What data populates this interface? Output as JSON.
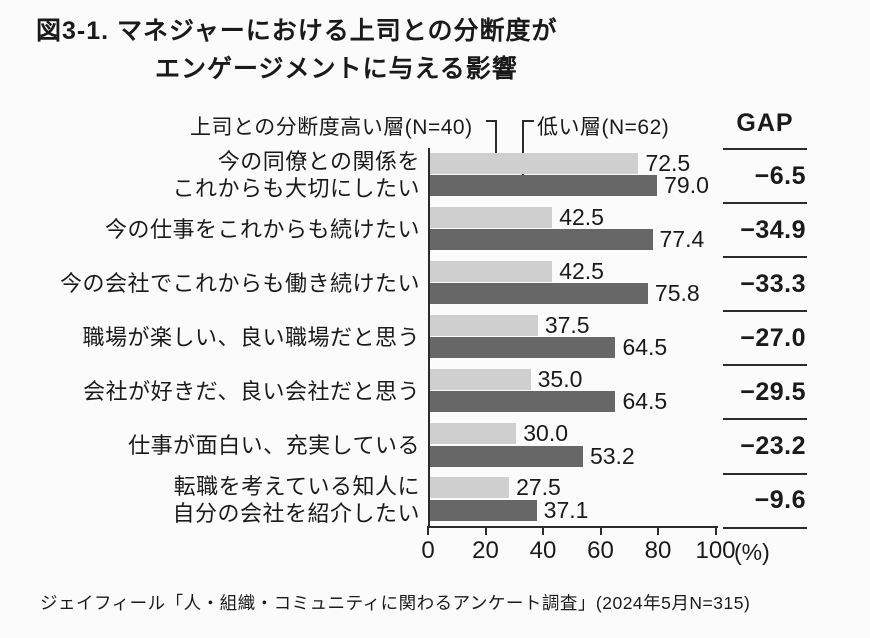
{
  "title": {
    "line1": "図3-1. マネジャーにおける上司との分断度が",
    "line2": "エンゲージメントに与える影響"
  },
  "legend": {
    "high_label": "上司との分断度高い層(N=40)",
    "low_label": "低い層(N=62)"
  },
  "gap_column": {
    "header": "GAP",
    "values": [
      -6.5,
      -34.9,
      -33.3,
      -27.0,
      -29.5,
      -23.2,
      -9.6
    ]
  },
  "axis": {
    "tick_labels": [
      "0",
      "20",
      "40",
      "60",
      "80",
      "100"
    ],
    "unit": "(%)",
    "min": 0,
    "max": 100
  },
  "source": "ジェイフィール「人・組織・コミュニティに関わるアンケート調査」(2024年5月N=315)",
  "colors": {
    "light_bar": "#cfcfcf",
    "dark_bar": "#676767",
    "line": "#2b2b2b",
    "text": "#1a1a1a"
  },
  "chart_data": {
    "type": "bar",
    "orientation": "horizontal",
    "title": "図3-1. マネジャーにおける上司との分断度がエンゲージメントに与える影響",
    "categories": [
      [
        "今の同僚との関係を",
        "これからも大切にしたい"
      ],
      [
        "今の仕事をこれからも続けたい"
      ],
      [
        "今の会社でこれからも働き続けたい"
      ],
      [
        "職場が楽しい、良い職場だと思う"
      ],
      [
        "会社が好きだ、良い会社だと思う"
      ],
      [
        "仕事が面白い、充実している"
      ],
      [
        "転職を考えている知人に",
        "自分の会社を紹介したい"
      ]
    ],
    "series": [
      {
        "name": "上司との分断度高い層(N=40)",
        "values": [
          72.5,
          42.5,
          42.5,
          37.5,
          35.0,
          30.0,
          27.5
        ]
      },
      {
        "name": "低い層(N=62)",
        "values": [
          79.0,
          77.4,
          75.8,
          64.5,
          64.5,
          53.2,
          37.1
        ]
      }
    ],
    "gap": [
      -6.5,
      -34.9,
      -33.3,
      -27.0,
      -29.5,
      -23.2,
      -9.6
    ],
    "xlim": [
      0,
      100
    ],
    "xticks": [
      0,
      20,
      40,
      60,
      80,
      100
    ],
    "unit": "%",
    "legend_position": "top",
    "grid": false
  }
}
